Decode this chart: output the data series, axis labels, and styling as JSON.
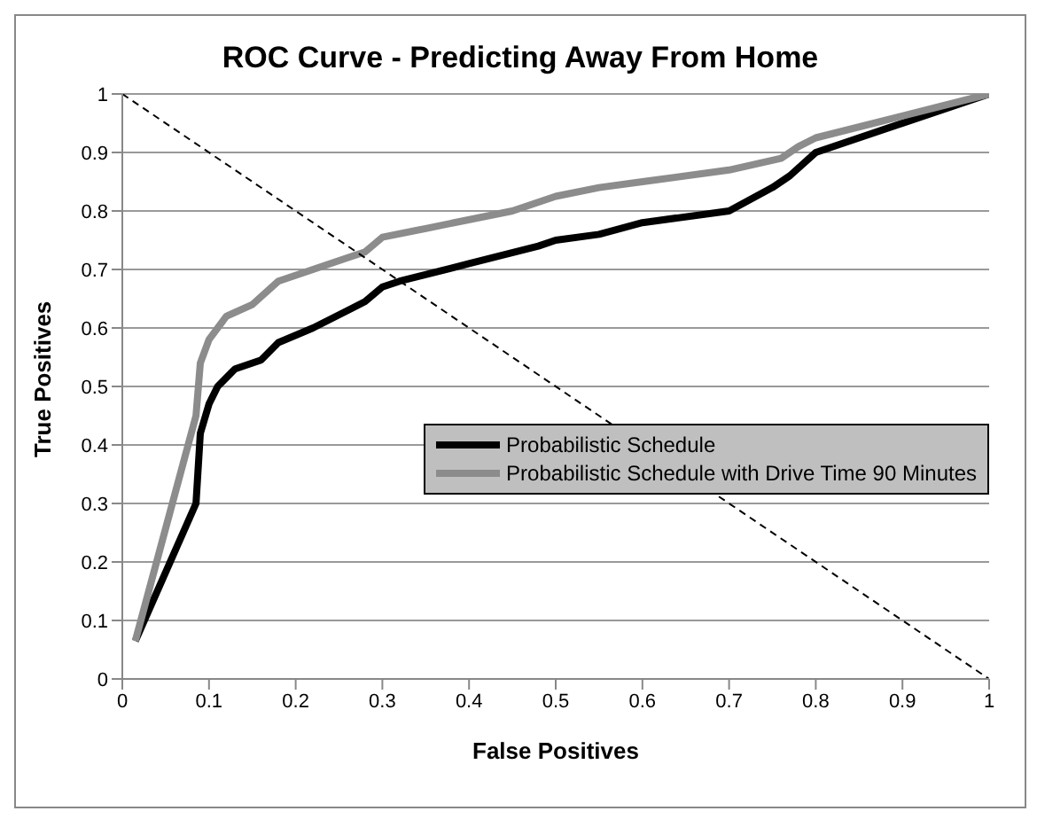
{
  "chart_data": {
    "type": "line",
    "title": "ROC Curve - Predicting Away From Home",
    "xlabel": "False Positives",
    "ylabel": "True Positives",
    "xlim": [
      0,
      1
    ],
    "xticks": [
      0,
      0.1,
      0.2,
      0.3,
      0.4,
      0.5,
      0.6,
      0.7,
      0.8,
      0.9,
      1
    ],
    "ylim": [
      0,
      1
    ],
    "yticks": [
      0,
      0.1,
      0.2,
      0.3,
      0.4,
      0.5,
      0.6,
      0.7,
      0.8,
      0.9,
      1
    ],
    "grid": "y",
    "legend": "right",
    "marker": "none",
    "series": [
      {
        "name": "Probabilistic Schedule",
        "color": "#000000",
        "line_style": "solid",
        "x": [
          0.015,
          0.085,
          0.09,
          0.1,
          0.11,
          0.13,
          0.16,
          0.18,
          0.22,
          0.26,
          0.28,
          0.3,
          0.32,
          0.4,
          0.48,
          0.5,
          0.55,
          0.6,
          0.7,
          0.75,
          0.77,
          0.8,
          1
        ],
        "values": [
          0.065,
          0.3,
          0.42,
          0.47,
          0.5,
          0.53,
          0.545,
          0.575,
          0.6,
          0.63,
          0.645,
          0.67,
          0.68,
          0.71,
          0.74,
          0.75,
          0.76,
          0.78,
          0.8,
          0.84,
          0.86,
          0.9,
          1
        ]
      },
      {
        "name": "Probabilistic Schedule with Drive Time 90 Minutes",
        "color": "#8c8c8c",
        "line_style": "solid",
        "x": [
          0.015,
          0.085,
          0.09,
          0.1,
          0.12,
          0.15,
          0.18,
          0.22,
          0.26,
          0.28,
          0.3,
          0.35,
          0.45,
          0.5,
          0.55,
          0.6,
          0.7,
          0.76,
          0.78,
          0.8,
          1
        ],
        "values": [
          0.065,
          0.45,
          0.54,
          0.58,
          0.62,
          0.64,
          0.68,
          0.7,
          0.72,
          0.73,
          0.755,
          0.77,
          0.8,
          0.825,
          0.84,
          0.85,
          0.87,
          0.89,
          0.91,
          0.925,
          1
        ]
      },
      {
        "color": "#000000",
        "line_style": "dashed",
        "x": [
          0,
          1
        ],
        "values": [
          1,
          0
        ]
      }
    ]
  }
}
